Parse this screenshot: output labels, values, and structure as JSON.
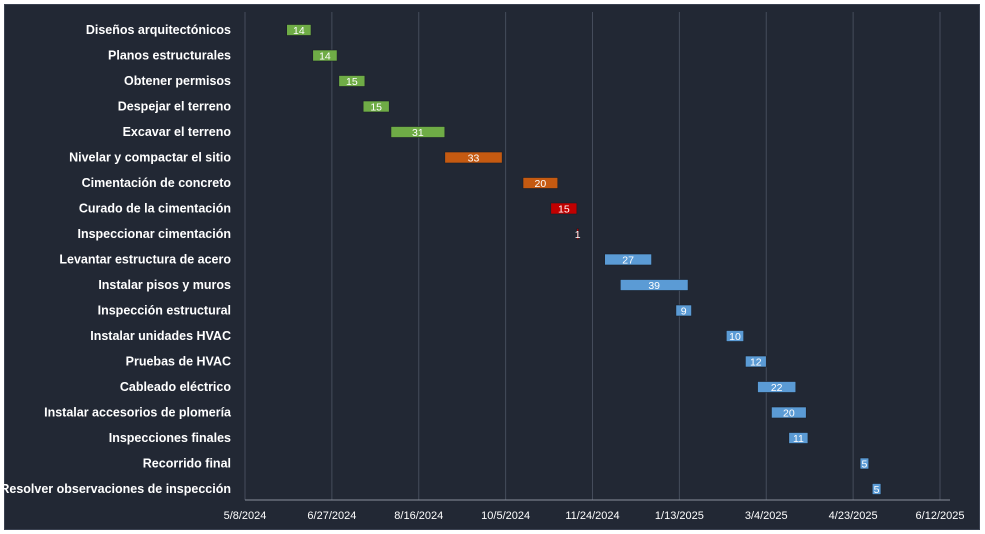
{
  "chart_data": {
    "type": "bar",
    "orientation": "horizontal-gantt",
    "title": "",
    "xlabel": "",
    "ylabel": "",
    "grid": true,
    "x_ticks": [
      "5/8/2024",
      "6/27/2024",
      "8/16/2024",
      "10/5/2024",
      "11/24/2024",
      "1/13/2025",
      "3/4/2025",
      "4/23/2025",
      "6/12/2025"
    ],
    "xlim": [
      "5/8/2024",
      "6/12/2025"
    ],
    "colors": {
      "green": "#6fac46",
      "orange": "#c55a11",
      "red": "#c00000",
      "blue": "#5b9bd5"
    },
    "tasks": [
      {
        "name": "Diseños arquitectónicos",
        "start": "6/1/2024",
        "duration": 14,
        "color": "green"
      },
      {
        "name": "Planos estructurales",
        "start": "6/16/2024",
        "duration": 14,
        "color": "green"
      },
      {
        "name": "Obtener permisos",
        "start": "7/1/2024",
        "duration": 15,
        "color": "green"
      },
      {
        "name": "Despejar el terreno",
        "start": "7/15/2024",
        "duration": 15,
        "color": "green"
      },
      {
        "name": "Excavar el terreno",
        "start": "7/31/2024",
        "duration": 31,
        "color": "green"
      },
      {
        "name": "Nivelar y compactar el sitio",
        "start": "8/31/2024",
        "duration": 33,
        "color": "orange"
      },
      {
        "name": "Cimentación de concreto",
        "start": "10/15/2024",
        "duration": 20,
        "color": "orange"
      },
      {
        "name": "Curado de la cimentación",
        "start": "10/31/2024",
        "duration": 15,
        "color": "red"
      },
      {
        "name": "Inspeccionar cimentación",
        "start": "11/15/2024",
        "duration": 1,
        "color": "red"
      },
      {
        "name": "Levantar estructura de acero",
        "start": "12/1/2024",
        "duration": 27,
        "color": "blue"
      },
      {
        "name": "Instalar pisos y muros",
        "start": "12/10/2024",
        "duration": 39,
        "color": "blue"
      },
      {
        "name": "Inspección estructural",
        "start": "1/11/2025",
        "duration": 9,
        "color": "blue"
      },
      {
        "name": "Instalar unidades HVAC",
        "start": "2/9/2025",
        "duration": 10,
        "color": "blue"
      },
      {
        "name": "Pruebas de HVAC",
        "start": "2/20/2025",
        "duration": 12,
        "color": "blue"
      },
      {
        "name": "Cableado eléctrico",
        "start": "2/27/2025",
        "duration": 22,
        "color": "blue"
      },
      {
        "name": "Instalar accesorios de plomería",
        "start": "3/7/2025",
        "duration": 20,
        "color": "blue"
      },
      {
        "name": "Inspecciones finales",
        "start": "3/17/2025",
        "duration": 11,
        "color": "blue"
      },
      {
        "name": "Recorrido final",
        "start": "4/27/2025",
        "duration": 5,
        "color": "blue"
      },
      {
        "name": "Resolver observaciones de inspección",
        "start": "5/4/2025",
        "duration": 5,
        "color": "blue"
      }
    ]
  }
}
